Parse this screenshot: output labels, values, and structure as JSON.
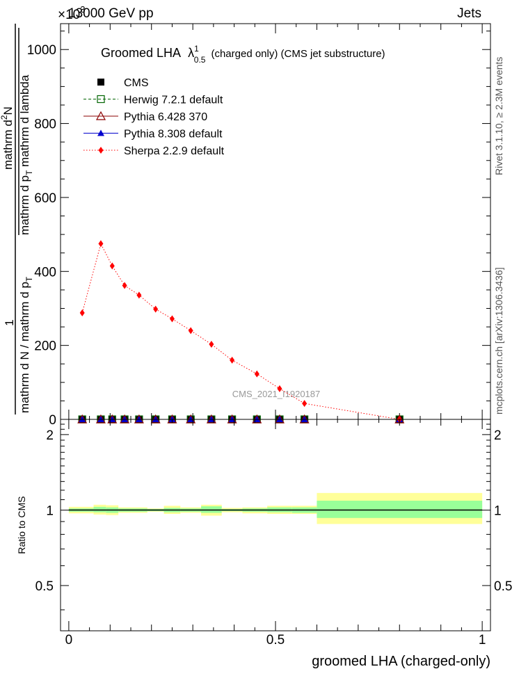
{
  "header": {
    "energy_label": "13000 GeV pp",
    "process_label": "Jets",
    "exponent_label": "×10",
    "exponent_power": "3"
  },
  "side_labels": {
    "rivet": "Rivet 3.1.10, ≥ 2.3M events",
    "mcplots": "mcplots.cern.ch [arXiv:1306.3436]"
  },
  "watermark": "CMS_2021_I1920187",
  "chart_data": [
    {
      "type": "line",
      "title_main": "Groomed LHA",
      "title_lambda": "λ",
      "title_lambda_sup": "1",
      "title_lambda_sub": "0.5",
      "title_rest": "(charged only) (CMS jet substructure)",
      "ylabel_numerator": "1",
      "ylabel_denominator": "mathrm d N / mathrm d p",
      "ylabel_denominator_sub": "T",
      "ylabel_num2_line1": "mathrm d",
      "ylabel_num2_sup": "2",
      "ylabel_num2_line2": "N",
      "ylabel_den2": "mathrm d p",
      "ylabel_den2_sub": "T",
      "ylabel_den2_rest": " mathrm d lambda",
      "ylim": [
        0,
        1070
      ],
      "yticks": [
        0,
        200,
        400,
        600,
        800,
        1000
      ],
      "ytick_labels": [
        "0",
        "200",
        "400",
        "600",
        "800",
        "1000"
      ],
      "legend_position": "top-left",
      "series": [
        {
          "name": "CMS",
          "color": "#000000",
          "marker": "square-filled",
          "x": [
            0.0325,
            0.0775,
            0.105,
            0.135,
            0.17,
            0.21,
            0.25,
            0.295,
            0.345,
            0.395,
            0.455,
            0.51,
            0.57,
            0.8
          ],
          "y": [
            0,
            0,
            0,
            0,
            0,
            0,
            0,
            0,
            0,
            0,
            0,
            0,
            0,
            0
          ]
        },
        {
          "name": "Herwig 7.2.1 default",
          "color": "#006400",
          "marker": "square-open",
          "line": "dashed",
          "x": [
            0.0325,
            0.0775,
            0.105,
            0.135,
            0.17,
            0.21,
            0.25,
            0.295,
            0.345,
            0.395,
            0.455,
            0.51,
            0.57,
            0.8
          ],
          "y": [
            0,
            0,
            0,
            0,
            0,
            0,
            0,
            0,
            0,
            0,
            0,
            0,
            0,
            0
          ]
        },
        {
          "name": "Pythia 6.428 370",
          "color": "#8b0000",
          "marker": "triangle-open",
          "line": "solid",
          "x": [
            0.0325,
            0.0775,
            0.105,
            0.135,
            0.17,
            0.21,
            0.25,
            0.295,
            0.345,
            0.395,
            0.455,
            0.51,
            0.57,
            0.8
          ],
          "y": [
            0,
            0,
            0,
            0,
            0,
            0,
            0,
            0,
            0,
            0,
            0,
            0,
            0,
            0
          ]
        },
        {
          "name": "Pythia 8.308 default",
          "color": "#0000cd",
          "marker": "triangle-filled",
          "line": "solid",
          "x": [
            0.0325,
            0.0775,
            0.105,
            0.135,
            0.17,
            0.21,
            0.25,
            0.295,
            0.345,
            0.395,
            0.455,
            0.51,
            0.57,
            0.8
          ],
          "y": [
            0,
            0,
            0,
            0,
            0,
            0,
            0,
            0,
            0,
            0,
            0,
            0,
            0,
            0
          ]
        },
        {
          "name": "Sherpa 2.2.9 default",
          "color": "#ff0000",
          "marker": "diamond-filled",
          "line": "dotted",
          "x": [
            0.0325,
            0.0775,
            0.105,
            0.135,
            0.17,
            0.21,
            0.25,
            0.295,
            0.345,
            0.395,
            0.455,
            0.51,
            0.57,
            0.8
          ],
          "y": [
            288,
            475,
            415,
            362,
            336,
            298,
            272,
            240,
            203,
            160,
            123,
            83,
            43,
            0
          ]
        }
      ]
    },
    {
      "type": "area",
      "ylabel": "Ratio to CMS",
      "xlabel": "groomed LHA (charged-only)",
      "xlim": [
        -0.02,
        1.02
      ],
      "xticks": [
        0,
        0.5,
        1
      ],
      "xtick_labels": [
        "0",
        "0.5",
        "1"
      ],
      "ylim": [
        0.33,
        2.3
      ],
      "yticks": [
        0.5,
        1,
        2
      ],
      "ytick_labels": [
        "0.5",
        "1",
        "2"
      ],
      "reference": 1,
      "band_colors": {
        "outer": "#ffff99",
        "inner": "#99ff99"
      },
      "bins": [
        {
          "lo": 0.0,
          "hi": 0.06,
          "inner": [
            0.985,
            1.015
          ],
          "outer": [
            0.97,
            1.03
          ]
        },
        {
          "lo": 0.06,
          "hi": 0.09,
          "inner": [
            0.98,
            1.03
          ],
          "outer": [
            0.96,
            1.05
          ]
        },
        {
          "lo": 0.09,
          "hi": 0.12,
          "inner": [
            0.975,
            1.025
          ],
          "outer": [
            0.955,
            1.045
          ]
        },
        {
          "lo": 0.12,
          "hi": 0.15,
          "inner": [
            0.985,
            1.015
          ],
          "outer": [
            0.975,
            1.025
          ]
        },
        {
          "lo": 0.15,
          "hi": 0.19,
          "inner": [
            0.985,
            1.015
          ],
          "outer": [
            0.975,
            1.025
          ]
        },
        {
          "lo": 0.19,
          "hi": 0.23,
          "inner": [
            0.99,
            1.01
          ],
          "outer": [
            0.985,
            1.015
          ]
        },
        {
          "lo": 0.23,
          "hi": 0.27,
          "inner": [
            0.98,
            1.02
          ],
          "outer": [
            0.965,
            1.04
          ]
        },
        {
          "lo": 0.27,
          "hi": 0.32,
          "inner": [
            0.985,
            1.015
          ],
          "outer": [
            0.975,
            1.025
          ]
        },
        {
          "lo": 0.32,
          "hi": 0.37,
          "inner": [
            0.975,
            1.035
          ],
          "outer": [
            0.95,
            1.05
          ]
        },
        {
          "lo": 0.37,
          "hi": 0.42,
          "inner": [
            0.99,
            1.01
          ],
          "outer": [
            0.98,
            1.02
          ]
        },
        {
          "lo": 0.42,
          "hi": 0.48,
          "inner": [
            0.985,
            1.015
          ],
          "outer": [
            0.97,
            1.025
          ]
        },
        {
          "lo": 0.48,
          "hi": 0.54,
          "inner": [
            0.98,
            1.025
          ],
          "outer": [
            0.965,
            1.04
          ]
        },
        {
          "lo": 0.54,
          "hi": 0.6,
          "inner": [
            0.975,
            1.025
          ],
          "outer": [
            0.965,
            1.04
          ]
        },
        {
          "lo": 0.6,
          "hi": 1.0,
          "inner": [
            0.93,
            1.09
          ],
          "outer": [
            0.88,
            1.17
          ]
        }
      ]
    }
  ]
}
